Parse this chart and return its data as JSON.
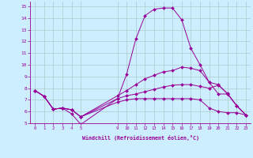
{
  "xlabel": "Windchill (Refroidissement éolien,°C)",
  "bg_color": "#cceeff",
  "line_color": "#990099",
  "grid_color": "#aacccc",
  "xlim": [
    -0.5,
    23.5
  ],
  "ylim": [
    5,
    15.4
  ],
  "xticks": [
    0,
    1,
    2,
    3,
    4,
    5,
    9,
    10,
    11,
    12,
    13,
    14,
    15,
    16,
    17,
    18,
    19,
    20,
    21,
    22,
    23
  ],
  "yticks": [
    5,
    6,
    7,
    8,
    9,
    10,
    11,
    12,
    13,
    14,
    15
  ],
  "lines": [
    {
      "x": [
        0,
        1,
        2,
        3,
        4,
        5,
        9,
        10,
        11,
        12,
        13,
        14,
        15,
        16,
        17,
        18,
        19,
        20,
        21,
        22,
        23
      ],
      "y": [
        7.8,
        7.3,
        6.2,
        6.3,
        5.8,
        4.9,
        7.1,
        9.2,
        12.2,
        14.2,
        14.75,
        14.85,
        14.85,
        13.85,
        11.4,
        10.0,
        8.5,
        7.5,
        7.5,
        6.5,
        5.7
      ]
    },
    {
      "x": [
        0,
        1,
        2,
        3,
        4,
        5,
        9,
        10,
        11,
        12,
        13,
        14,
        15,
        16,
        17,
        18,
        19,
        20,
        21,
        22,
        23
      ],
      "y": [
        7.8,
        7.3,
        6.2,
        6.3,
        6.15,
        5.55,
        7.35,
        7.8,
        8.3,
        8.8,
        9.1,
        9.4,
        9.5,
        9.8,
        9.7,
        9.5,
        8.5,
        8.3,
        7.5,
        6.5,
        5.7
      ]
    },
    {
      "x": [
        0,
        1,
        2,
        3,
        4,
        5,
        9,
        10,
        11,
        12,
        13,
        14,
        15,
        16,
        17,
        18,
        19,
        20,
        21,
        22,
        23
      ],
      "y": [
        7.8,
        7.3,
        6.2,
        6.3,
        6.15,
        5.55,
        7.1,
        7.35,
        7.5,
        7.7,
        7.9,
        8.1,
        8.25,
        8.3,
        8.3,
        8.15,
        8.0,
        8.25,
        7.55,
        6.5,
        5.7
      ]
    },
    {
      "x": [
        0,
        1,
        2,
        3,
        4,
        5,
        9,
        10,
        11,
        12,
        13,
        14,
        15,
        16,
        17,
        18,
        19,
        20,
        21,
        22,
        23
      ],
      "y": [
        7.8,
        7.3,
        6.2,
        6.3,
        6.15,
        5.55,
        6.8,
        7.0,
        7.1,
        7.1,
        7.1,
        7.1,
        7.1,
        7.1,
        7.1,
        7.0,
        6.3,
        6.0,
        5.9,
        5.9,
        5.7
      ]
    }
  ]
}
